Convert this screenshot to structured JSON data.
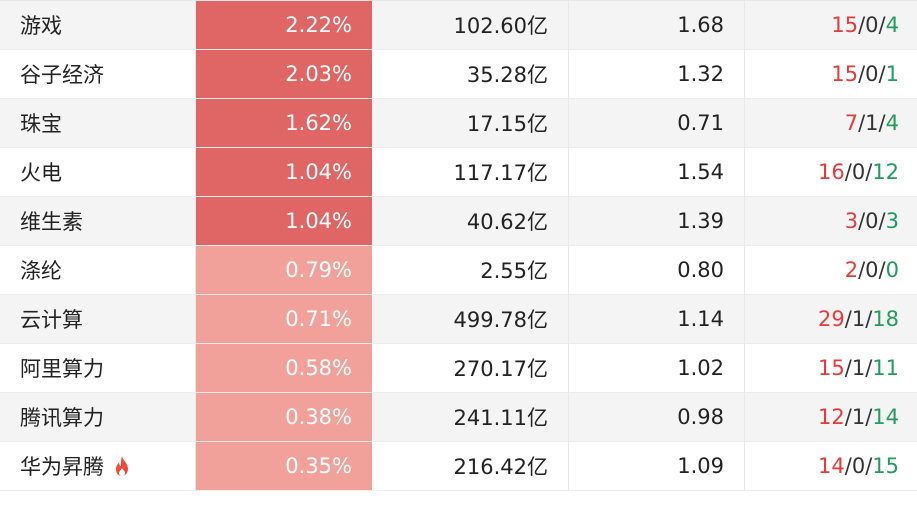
{
  "colors": {
    "pct_strong": "#e06565",
    "pct_light": "#f2a19a",
    "up": "#e53b3b",
    "down": "#1e9e5a",
    "flat": "#333333"
  },
  "rows": [
    {
      "name": "游戏",
      "pct": "2.22%",
      "pct_level": "strong",
      "amount": "102.60亿",
      "ratio": "1.68",
      "up": "15",
      "flat": "0",
      "down": "4",
      "hot": false
    },
    {
      "name": "谷子经济",
      "pct": "2.03%",
      "pct_level": "strong",
      "amount": "35.28亿",
      "ratio": "1.32",
      "up": "15",
      "flat": "0",
      "down": "1",
      "hot": false
    },
    {
      "name": "珠宝",
      "pct": "1.62%",
      "pct_level": "strong",
      "amount": "17.15亿",
      "ratio": "0.71",
      "up": "7",
      "flat": "1",
      "down": "4",
      "hot": false
    },
    {
      "name": "火电",
      "pct": "1.04%",
      "pct_level": "strong",
      "amount": "117.17亿",
      "ratio": "1.54",
      "up": "16",
      "flat": "0",
      "down": "12",
      "hot": false
    },
    {
      "name": "维生素",
      "pct": "1.04%",
      "pct_level": "strong",
      "amount": "40.62亿",
      "ratio": "1.39",
      "up": "3",
      "flat": "0",
      "down": "3",
      "hot": false
    },
    {
      "name": "涤纶",
      "pct": "0.79%",
      "pct_level": "light",
      "amount": "2.55亿",
      "ratio": "0.80",
      "up": "2",
      "flat": "0",
      "down": "0",
      "hot": false
    },
    {
      "name": "云计算",
      "pct": "0.71%",
      "pct_level": "light",
      "amount": "499.78亿",
      "ratio": "1.14",
      "up": "29",
      "flat": "1",
      "down": "18",
      "hot": false
    },
    {
      "name": "阿里算力",
      "pct": "0.58%",
      "pct_level": "light",
      "amount": "270.17亿",
      "ratio": "1.02",
      "up": "15",
      "flat": "1",
      "down": "11",
      "hot": false
    },
    {
      "name": "腾讯算力",
      "pct": "0.38%",
      "pct_level": "light",
      "amount": "241.11亿",
      "ratio": "0.98",
      "up": "12",
      "flat": "1",
      "down": "14",
      "hot": false
    },
    {
      "name": "华为昇腾",
      "pct": "0.35%",
      "pct_level": "light",
      "amount": "216.42亿",
      "ratio": "1.09",
      "up": "14",
      "flat": "0",
      "down": "15",
      "hot": true,
      "hot_icon": "fire-icon"
    }
  ]
}
